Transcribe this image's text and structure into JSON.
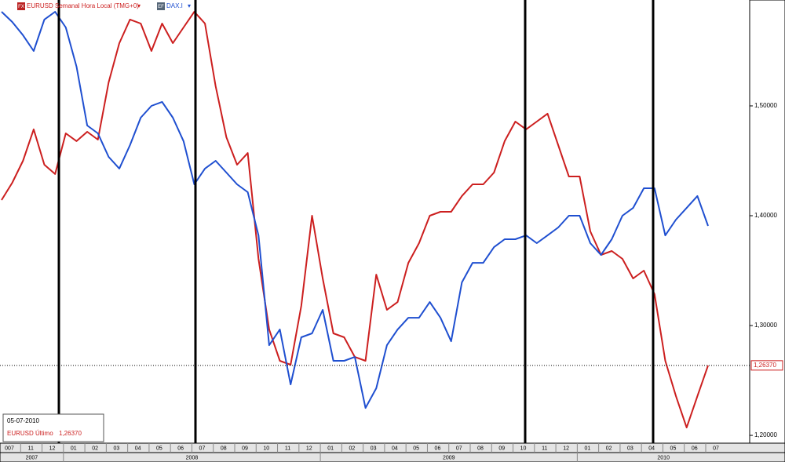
{
  "chart_data": {
    "type": "line",
    "legend_icons": [
      "FX",
      "EF"
    ],
    "categories": [
      "007",
      null,
      "11",
      null,
      "12",
      null,
      "01",
      null,
      "02",
      null,
      "03",
      null,
      "04",
      null,
      "05",
      null,
      "06",
      null,
      "07",
      null,
      "08",
      null,
      "09",
      null,
      "10",
      null,
      "11",
      null,
      "12",
      null,
      "01",
      null,
      "02",
      null,
      "03",
      null,
      "04",
      null,
      "05",
      null,
      "06",
      null,
      "07",
      null,
      "08",
      null,
      "09",
      null,
      "10",
      null,
      "11",
      null,
      "12",
      null,
      "01",
      null,
      "02",
      null,
      "03",
      null,
      "04",
      null,
      "05",
      null,
      "06",
      null,
      "07"
    ],
    "years": [
      "2007",
      "2008",
      "2009",
      "2010"
    ],
    "series": [
      {
        "name": "EURUSD Semanal Hora Local (TMG+0)",
        "color": "#cc1f1f",
        "values": [
          1.4143,
          1.43,
          1.45,
          1.4786,
          1.4464,
          1.4379,
          1.475,
          1.4679,
          1.4764,
          1.4693,
          1.5214,
          1.5571,
          1.5786,
          1.575,
          1.55,
          1.575,
          1.5571,
          1.5714,
          1.5857,
          1.575,
          1.5179,
          1.4714,
          1.4464,
          1.4571,
          1.3607,
          1.2964,
          1.2679,
          1.2643,
          1.3179,
          1.4,
          1.3429,
          1.2929,
          1.2893,
          1.2714,
          1.2679,
          1.3464,
          1.3143,
          1.3214,
          1.3571,
          1.375,
          1.4,
          1.4036,
          1.4036,
          1.4179,
          1.4286,
          1.4286,
          1.4393,
          1.4679,
          1.4857,
          1.4786,
          1.4857,
          1.4929,
          1.4643,
          1.4357,
          1.4357,
          1.3857,
          1.3643,
          1.3679,
          1.3607,
          1.3429,
          1.35,
          1.3286,
          1.2679,
          1.2357,
          1.2071,
          1.2357,
          1.2637
        ]
      },
      {
        "name": "DAX.I",
        "color": "#1f4fd0",
        "values": [
          1.5857,
          1.5764,
          1.5643,
          1.55,
          1.5786,
          1.5857,
          1.5714,
          1.5357,
          1.4821,
          1.475,
          1.4536,
          1.4429,
          1.4643,
          1.4893,
          1.5,
          1.5036,
          1.4893,
          1.4679,
          1.4286,
          1.4429,
          1.45,
          1.4393,
          1.4286,
          1.4214,
          1.3821,
          1.2821,
          1.2964,
          1.2464,
          1.2893,
          1.2929,
          1.3143,
          1.2679,
          1.2679,
          1.2714,
          1.225,
          1.2429,
          1.2821,
          1.2964,
          1.3071,
          1.3071,
          1.3214,
          1.3071,
          1.2857,
          1.3393,
          1.3571,
          1.3571,
          1.3714,
          1.3786,
          1.3786,
          1.3821,
          1.375,
          1.3821,
          1.3893,
          1.4,
          1.4,
          1.375,
          1.3643,
          1.3786,
          1.4,
          1.4071,
          1.425,
          1.425,
          1.3821,
          1.3964,
          1.4071,
          1.4179,
          1.3907
        ]
      }
    ],
    "ylim": [
      1.1929,
      1.5964
    ],
    "yticks": [
      {
        "value": 1.2,
        "label": "1,20000"
      },
      {
        "value": 1.3,
        "label": "1,30000"
      },
      {
        "value": 1.4,
        "label": "1,40000"
      },
      {
        "value": 1.5,
        "label": "1,50000"
      }
    ],
    "last_label": {
      "value": 1.2637,
      "label": "1,26370"
    },
    "info_box": {
      "date": "05-07-2010",
      "name": "EURUSD Último",
      "value": "1,26370"
    }
  }
}
